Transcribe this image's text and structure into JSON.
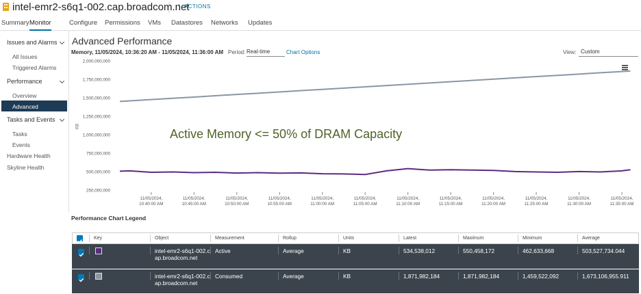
{
  "header": {
    "title": "intel-emr2-s6q1-002.cap.broadcom.net",
    "actions": "ACTIONS"
  },
  "tabs": {
    "items": [
      "Summary",
      "Monitor",
      "Configure",
      "Permissions",
      "VMs",
      "Datastores",
      "Networks",
      "Updates"
    ],
    "active": 1
  },
  "sidebar": {
    "sections": [
      {
        "title": "Issues and Alarms",
        "items": [
          "All Issues",
          "Triggered Alarms"
        ]
      },
      {
        "title": "Performance",
        "items": [
          "Overview",
          "Advanced"
        ]
      },
      {
        "title": "Tasks and Events",
        "items": [
          "Tasks",
          "Events"
        ]
      }
    ],
    "links": [
      "Hardware Health",
      "Skyline Health"
    ],
    "selected_section": 1,
    "selected_item": 1
  },
  "page": {
    "title": "Advanced Performance",
    "context": "Memory, 11/05/2024, 10:36:20 AM - 11/05/2024, 11:36:00 AM",
    "period_label": "Period:",
    "period": "Real-time",
    "chart_options": "Chart Options",
    "view_label": "View:",
    "view": "Custom"
  },
  "chart_data": {
    "type": "line",
    "ylabel": "KB",
    "annotation": "Active Memory <= 50% of DRAM Capacity",
    "annotation_color": "#4f6228",
    "x": [
      "11/05/2024, 10:36:20 AM",
      "11/05/2024, 10:37:30 AM",
      "11/05/2024, 10:40:00 AM",
      "11/05/2024, 10:42:30 AM",
      "11/05/2024, 10:45:00 AM",
      "11/05/2024, 10:47:30 AM",
      "11/05/2024, 10:50:00 AM",
      "11/05/2024, 10:52:30 AM",
      "11/05/2024, 10:55:00 AM",
      "11/05/2024, 10:57:30 AM",
      "11/05/2024, 11:00:00 AM",
      "11/05/2024, 11:02:30 AM",
      "11/05/2024, 11:05:00 AM",
      "11/05/2024, 11:07:30 AM",
      "11/05/2024, 11:10:00 AM",
      "11/05/2024, 11:12:30 AM",
      "11/05/2024, 11:15:00 AM",
      "11/05/2024, 11:17:30 AM",
      "11/05/2024, 11:20:00 AM",
      "11/05/2024, 11:22:30 AM",
      "11/05/2024, 11:25:00 AM",
      "11/05/2024, 11:27:30 AM",
      "11/05/2024, 11:30:00 AM",
      "11/05/2024, 11:32:30 AM",
      "11/05/2024, 11:35:00 AM",
      "11/05/2024, 11:36:00 AM"
    ],
    "series": [
      {
        "name": "Active",
        "color": "#5b2a82",
        "values": [
          515000000,
          520000000,
          500000000,
          505000000,
          495000000,
          500000000,
          490000000,
          495000000,
          488000000,
          492000000,
          480000000,
          478000000,
          470000000,
          520000000,
          550000000,
          530000000,
          535000000,
          530000000,
          525000000,
          510000000,
          505000000,
          500000000,
          510000000,
          505000000,
          520000000,
          534538012
        ]
      },
      {
        "name": "Consumed",
        "color": "#8a95a5",
        "values": [
          1459522092,
          1468000000,
          1485000000,
          1502000000,
          1519000000,
          1537000000,
          1554000000,
          1571000000,
          1588000000,
          1606000000,
          1623000000,
          1640000000,
          1658000000,
          1675000000,
          1692000000,
          1709000000,
          1727000000,
          1744000000,
          1761000000,
          1779000000,
          1796000000,
          1813000000,
          1830000000,
          1848000000,
          1865000000,
          1871982184
        ]
      }
    ],
    "xlim": [
      "11/05/2024, 10:36:20 AM",
      "11/05/2024, 11:36:00 AM"
    ],
    "xticks": [
      "11/05/2024, 10:40:00 AM",
      "11/05/2024, 10:45:00 AM",
      "11/05/2024, 10:50:00 AM",
      "11/05/2024, 10:55:00 AM",
      "11/05/2024, 11:00:00 AM",
      "11/05/2024, 11:05:00 AM",
      "11/05/2024, 11:10:00 AM",
      "11/05/2024, 11:15:00 AM",
      "11/05/2024, 11:20:00 AM",
      "11/05/2024, 11:25:00 AM",
      "11/05/2024, 11:30:00 AM",
      "11/05/2024, 11:35:00 AM"
    ],
    "ylim": [
      250000000,
      2000000000
    ],
    "yticks": [
      {
        "value": 2000000000,
        "label": "2,000,000,000"
      },
      {
        "value": 1750000000,
        "label": "1,750,000,000"
      },
      {
        "value": 1500000000,
        "label": "1,500,000,000"
      },
      {
        "value": 1250000000,
        "label": "1,250,000,000"
      },
      {
        "value": 1000000000,
        "label": "1,000,000,000"
      },
      {
        "value": 750000000,
        "label": "750,000,000"
      },
      {
        "value": 500000000,
        "label": "500,000,000"
      },
      {
        "value": 250000000,
        "label": "250,000,000"
      }
    ],
    "grid": false
  },
  "legend_table": {
    "title": "Performance Chart Legend",
    "columns": [
      "Key",
      "Object",
      "Measurement",
      "Rollup",
      "Units",
      "Latest",
      "Maximum",
      "Minimum",
      "Average"
    ],
    "rows": [
      [
        "intel-emr2-s6q1-002.cap.broadcom.net",
        "Active",
        "Average",
        "KB",
        "534,538,012",
        "550,458,172",
        "462,633,668",
        "503,527,734.044"
      ],
      [
        "intel-emr2-s6q1-002.cap.broadcom.net",
        "Consumed",
        "Average",
        "KB",
        "1,871,982,184",
        "1,871,982,184",
        "1,459,522,092",
        "1,673,106,955.911"
      ]
    ]
  }
}
